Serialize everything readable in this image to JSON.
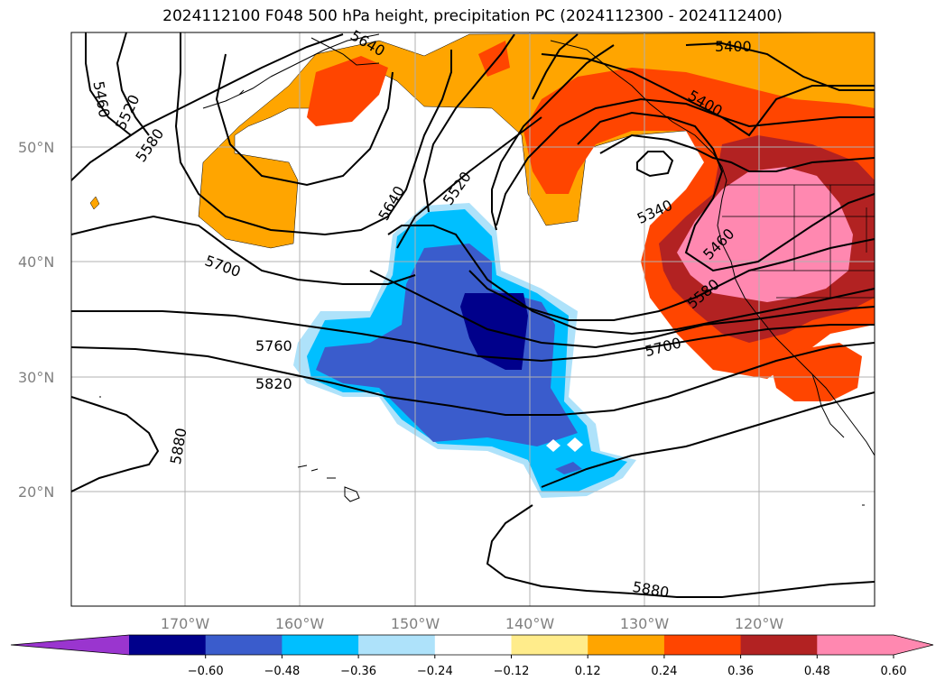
{
  "title": "2024112100 F048 500 hPa height, precipitation PC (2024112300 - 2024112400)",
  "lat_labels": [
    "50°N",
    "40°N",
    "30°N",
    "20°N"
  ],
  "lon_labels": [
    "170°W",
    "160°W",
    "150°W",
    "140°W",
    "130°W",
    "120°W"
  ],
  "contour_labels": [
    "5400",
    "5400",
    "5460",
    "5520",
    "5580",
    "5640",
    "5520",
    "5340",
    "5460",
    "5580",
    "5640",
    "5700",
    "5760",
    "5820",
    "5880",
    "5880",
    "5700"
  ],
  "colorbar": {
    "ticks": [
      "−0.60",
      "−0.48",
      "−0.36",
      "−0.24",
      "−0.12",
      "0.12",
      "0.24",
      "0.36",
      "0.48",
      "0.60"
    ],
    "colors": [
      "#9a35cf",
      "#00008b",
      "#3a5ccc",
      "#00bfff",
      "#aee2fa",
      "#ffffff",
      "#ffec8b",
      "#ffa500",
      "#ff4500",
      "#b22222",
      "#ff88b0",
      "#ff88b0"
    ]
  },
  "map_colors": {
    "orange": "#ffa500",
    "red": "#ff4500",
    "darkred": "#b22222",
    "pink": "#ff88b0",
    "yellow": "#ffec8b",
    "lightblue": "#aee2fa",
    "cyan": "#00bfff",
    "blue": "#3a5ccc",
    "navy": "#00008b"
  }
}
